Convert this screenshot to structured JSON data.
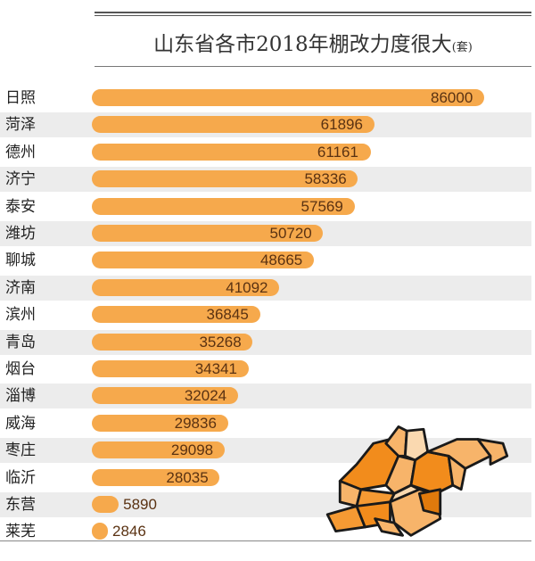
{
  "chart_data": {
    "type": "bar",
    "orientation": "horizontal",
    "title": "山东省各市2018年棚改力度很大",
    "unit": "(套)",
    "categories": [
      "日照",
      "菏泽",
      "德州",
      "济宁",
      "泰安",
      "潍坊",
      "聊城",
      "济南",
      "滨州",
      "青岛",
      "烟台",
      "淄博",
      "威海",
      "枣庄",
      "临沂",
      "东营",
      "莱芜"
    ],
    "values": [
      86000,
      61896,
      61161,
      58336,
      57569,
      50720,
      48665,
      41092,
      36845,
      35268,
      34341,
      32024,
      29836,
      29098,
      28035,
      5890,
      2846
    ],
    "xlim": [
      0,
      86000
    ],
    "grid": false,
    "bar_color": "#f6a94c",
    "band_color": "#ececec"
  },
  "map_colors": [
    "#f28c1c",
    "#f7b46a",
    "#fad9b0",
    "#f59a33",
    "#e07a0c"
  ]
}
